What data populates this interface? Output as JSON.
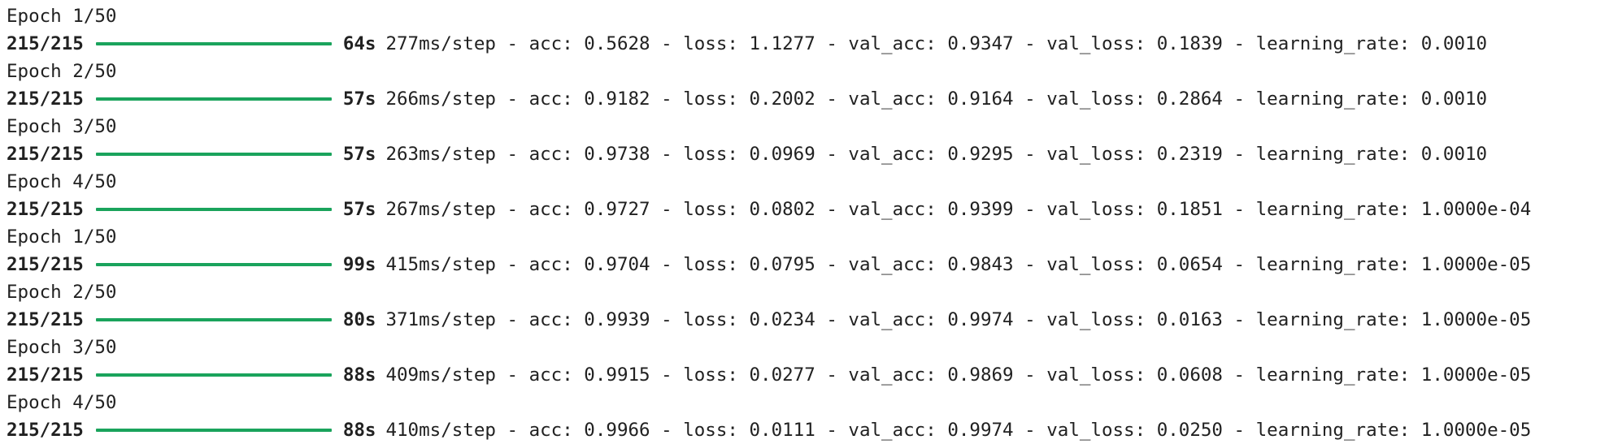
{
  "colors": {
    "text": "#212121",
    "progress_bar": "#1aa35c",
    "background": "#ffffff"
  },
  "progress": {
    "fraction": 1.0
  },
  "epochs": [
    {
      "epoch": "Epoch 1/50",
      "steps": "215/215",
      "time": "64s",
      "stats": "277ms/step - acc: 0.5628 - loss: 1.1277 - val_acc: 0.9347 - val_loss: 0.1839 - learning_rate: 0.0010"
    },
    {
      "epoch": "Epoch 2/50",
      "steps": "215/215",
      "time": "57s",
      "stats": "266ms/step - acc: 0.9182 - loss: 0.2002 - val_acc: 0.9164 - val_loss: 0.2864 - learning_rate: 0.0010"
    },
    {
      "epoch": "Epoch 3/50",
      "steps": "215/215",
      "time": "57s",
      "stats": "263ms/step - acc: 0.9738 - loss: 0.0969 - val_acc: 0.9295 - val_loss: 0.2319 - learning_rate: 0.0010"
    },
    {
      "epoch": "Epoch 4/50",
      "steps": "215/215",
      "time": "57s",
      "stats": "267ms/step - acc: 0.9727 - loss: 0.0802 - val_acc: 0.9399 - val_loss: 0.1851 - learning_rate: 1.0000e-04"
    },
    {
      "epoch": "Epoch 1/50",
      "steps": "215/215",
      "time": "99s",
      "stats": "415ms/step - acc: 0.9704 - loss: 0.0795 - val_acc: 0.9843 - val_loss: 0.0654 - learning_rate: 1.0000e-05"
    },
    {
      "epoch": "Epoch 2/50",
      "steps": "215/215",
      "time": "80s",
      "stats": "371ms/step - acc: 0.9939 - loss: 0.0234 - val_acc: 0.9974 - val_loss: 0.0163 - learning_rate: 1.0000e-05"
    },
    {
      "epoch": "Epoch 3/50",
      "steps": "215/215",
      "time": "88s",
      "stats": "409ms/step - acc: 0.9915 - loss: 0.0277 - val_acc: 0.9869 - val_loss: 0.0608 - learning_rate: 1.0000e-05"
    },
    {
      "epoch": "Epoch 4/50",
      "steps": "215/215",
      "time": "88s",
      "stats": "410ms/step - acc: 0.9966 - loss: 0.0111 - val_acc: 0.9974 - val_loss: 0.0250 - learning_rate: 1.0000e-05"
    }
  ]
}
